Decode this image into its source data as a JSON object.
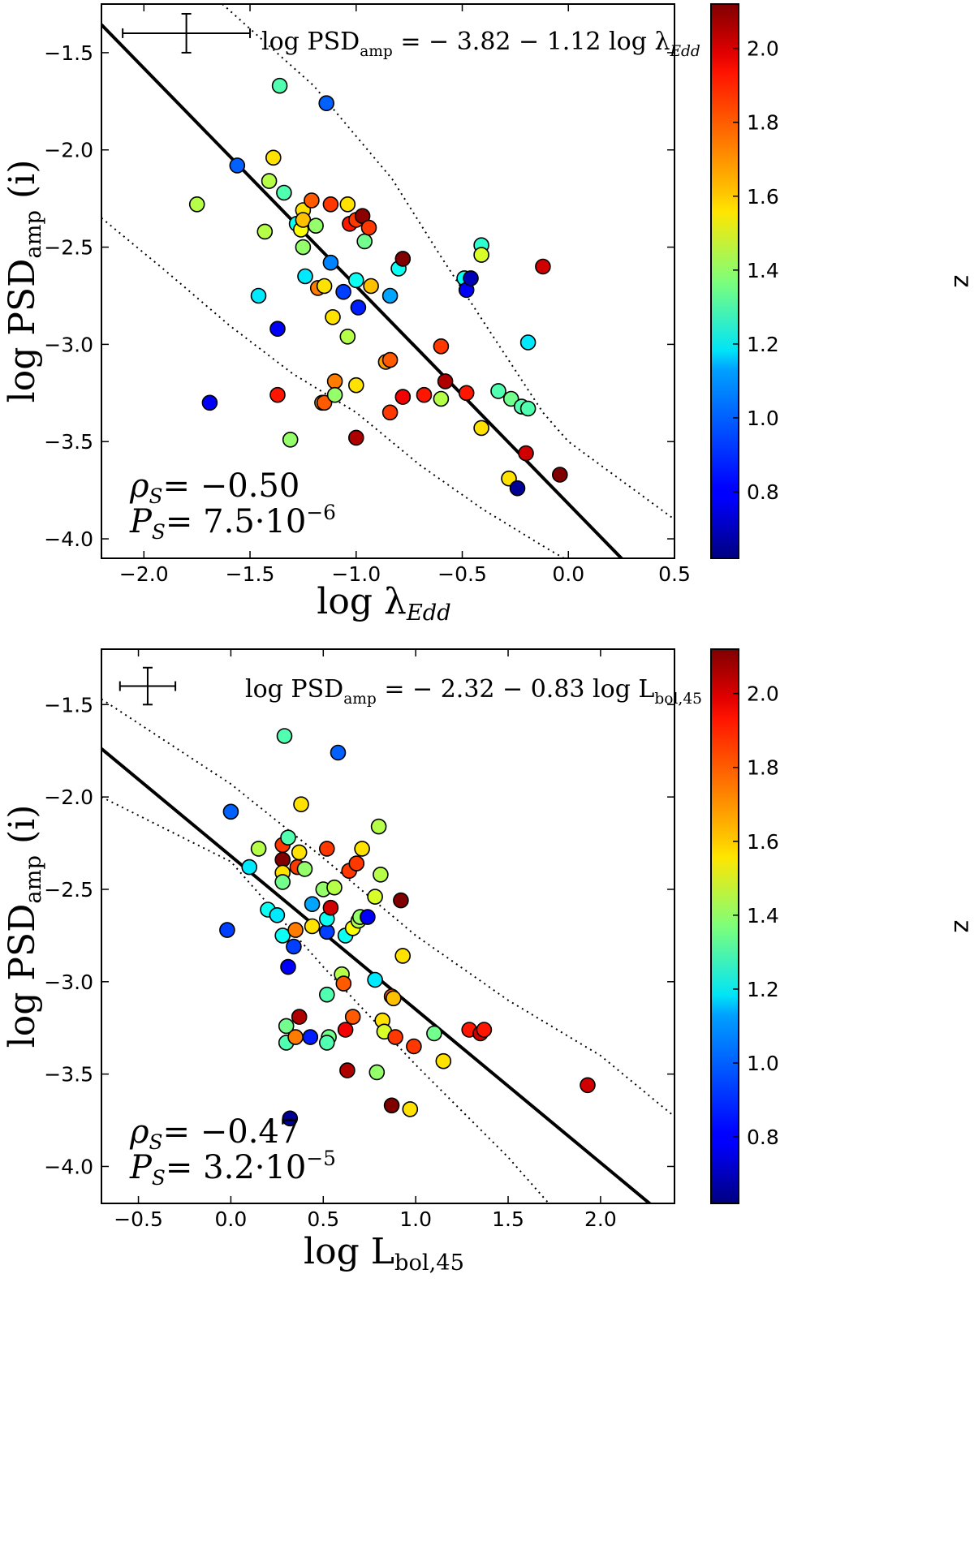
{
  "chart_data": [
    {
      "type": "scatter",
      "name": "top",
      "xlabel": {
        "base": "log ",
        "sym": "λ",
        "sub": "Edd"
      },
      "ylabel": {
        "base": "log PSD",
        "sub": "amp",
        "suffix": " (i)"
      },
      "xlim": [
        -2.2,
        0.5
      ],
      "ylim": [
        -4.1,
        -1.25
      ],
      "xticks": [
        -2.0,
        -1.5,
        -1.0,
        -0.5,
        0.0,
        0.5
      ],
      "xtick_labels": [
        "−2.0",
        "−1.5",
        "−1.0",
        "−0.5",
        "0.0",
        "0.5"
      ],
      "yticks": [
        -1.5,
        -2.0,
        -2.5,
        -3.0,
        -3.5,
        -4.0
      ],
      "ytick_labels": [
        "−1.5",
        "−2.0",
        "−2.5",
        "−3.0",
        "−3.5",
        "−4.0"
      ],
      "equation": {
        "pre": "log PSD",
        "pre_sub": "amp",
        "mid": " = − 3.82 − 1.12 log ",
        "sym": "λ",
        "sym_sub": "Edd"
      },
      "rho": {
        "label": "ρ",
        "sub": "S",
        "value": "= −0.50"
      },
      "pval": {
        "label": "P",
        "sub": "S",
        "value": "= 7.5·10",
        "exp": "−6"
      },
      "fit_line": {
        "slope": -1.12,
        "intercept": -3.82
      },
      "dotted_upper": [
        [
          -1.63,
          -1.25
        ],
        [
          -1.2,
          -1.67
        ],
        [
          -0.83,
          -2.15
        ],
        [
          -0.6,
          -2.55
        ],
        [
          -0.3,
          -3.05
        ],
        [
          -0.12,
          -3.35
        ],
        [
          0.0,
          -3.5
        ],
        [
          0.5,
          -3.9
        ]
      ],
      "dotted_lower": [
        [
          -2.2,
          -2.35
        ],
        [
          -1.9,
          -2.62
        ],
        [
          -1.6,
          -2.9
        ],
        [
          -1.3,
          -3.15
        ],
        [
          -1.0,
          -3.35
        ],
        [
          -0.7,
          -3.62
        ],
        [
          -0.4,
          -3.85
        ],
        [
          -0.1,
          -4.05
        ],
        [
          -0.02,
          -4.1
        ]
      ],
      "error_bar": {
        "x": -1.8,
        "y": -1.4,
        "xerr": 0.3,
        "yerr": 0.1
      },
      "points": [
        {
          "x": -1.75,
          "y": -2.28,
          "z": 1.45
        },
        {
          "x": -1.69,
          "y": -3.3,
          "z": 0.8
        },
        {
          "x": -1.56,
          "y": -2.08,
          "z": 0.95
        },
        {
          "x": -1.46,
          "y": -2.75,
          "z": 1.15
        },
        {
          "x": -1.43,
          "y": -2.42,
          "z": 1.45
        },
        {
          "x": -1.41,
          "y": -2.16,
          "z": 1.45
        },
        {
          "x": -1.39,
          "y": -2.04,
          "z": 1.6
        },
        {
          "x": -1.37,
          "y": -2.92,
          "z": 0.8
        },
        {
          "x": -1.37,
          "y": -3.26,
          "z": 1.9
        },
        {
          "x": -1.36,
          "y": -1.67,
          "z": 1.3
        },
        {
          "x": -1.34,
          "y": -2.22,
          "z": 1.3
        },
        {
          "x": -1.31,
          "y": -3.49,
          "z": 1.4
        },
        {
          "x": -1.28,
          "y": -2.38,
          "z": 1.2
        },
        {
          "x": -1.26,
          "y": -2.41,
          "z": 1.55
        },
        {
          "x": -1.25,
          "y": -2.31,
          "z": 1.6
        },
        {
          "x": -1.25,
          "y": -2.36,
          "z": 1.65
        },
        {
          "x": -1.25,
          "y": -2.5,
          "z": 1.4
        },
        {
          "x": -1.24,
          "y": -2.65,
          "z": 1.15
        },
        {
          "x": -1.21,
          "y": -2.26,
          "z": 1.8
        },
        {
          "x": -1.19,
          "y": -2.39,
          "z": 1.4
        },
        {
          "x": -1.18,
          "y": -2.71,
          "z": 1.75
        },
        {
          "x": -1.16,
          "y": -3.3,
          "z": 1.7
        },
        {
          "x": -1.15,
          "y": -3.3,
          "z": 1.8
        },
        {
          "x": -1.15,
          "y": -2.7,
          "z": 1.6
        },
        {
          "x": -1.12,
          "y": -2.28,
          "z": 1.85
        },
        {
          "x": -1.12,
          "y": -2.58,
          "z": 1.0
        },
        {
          "x": -1.11,
          "y": -2.86,
          "z": 1.6
        },
        {
          "x": -1.1,
          "y": -3.19,
          "z": 1.75
        },
        {
          "x": -1.1,
          "y": -3.26,
          "z": 1.4
        },
        {
          "x": -1.06,
          "y": -2.73,
          "z": 0.9
        },
        {
          "x": -1.04,
          "y": -2.28,
          "z": 1.6
        },
        {
          "x": -1.04,
          "y": -2.96,
          "z": 1.45
        },
        {
          "x": -1.03,
          "y": -2.38,
          "z": 1.9
        },
        {
          "x": -1.0,
          "y": -2.36,
          "z": 1.85
        },
        {
          "x": -1.0,
          "y": -2.67,
          "z": 1.2
        },
        {
          "x": -1.0,
          "y": -3.48,
          "z": 2.05
        },
        {
          "x": -1.0,
          "y": -3.21,
          "z": 1.6
        },
        {
          "x": -0.99,
          "y": -2.81,
          "z": 0.85
        },
        {
          "x": -0.97,
          "y": -2.34,
          "z": 2.1
        },
        {
          "x": -0.96,
          "y": -2.47,
          "z": 1.35
        },
        {
          "x": -0.94,
          "y": -2.4,
          "z": 1.85
        },
        {
          "x": -0.93,
          "y": -2.7,
          "z": 1.65
        },
        {
          "x": -0.86,
          "y": -3.09,
          "z": 1.7
        },
        {
          "x": -0.84,
          "y": -2.75,
          "z": 1.05
        },
        {
          "x": -0.84,
          "y": -3.35,
          "z": 1.85
        },
        {
          "x": -0.84,
          "y": -3.08,
          "z": 1.8
        },
        {
          "x": -0.8,
          "y": -2.61,
          "z": 1.2
        },
        {
          "x": -0.78,
          "y": -3.27,
          "z": 1.95
        },
        {
          "x": -0.78,
          "y": -2.56,
          "z": 2.12
        },
        {
          "x": -1.14,
          "y": -1.76,
          "z": 0.95
        },
        {
          "x": -0.68,
          "y": -3.26,
          "z": 1.9
        },
        {
          "x": -0.6,
          "y": -3.28,
          "z": 1.45
        },
        {
          "x": -0.6,
          "y": -3.01,
          "z": 1.85
        },
        {
          "x": -0.58,
          "y": -3.19,
          "z": 2.05
        },
        {
          "x": -0.49,
          "y": -2.66,
          "z": 1.2
        },
        {
          "x": -0.48,
          "y": -2.72,
          "z": 0.8
        },
        {
          "x": -0.48,
          "y": -3.25,
          "z": 1.9
        },
        {
          "x": -0.46,
          "y": -2.66,
          "z": 0.7
        },
        {
          "x": -0.41,
          "y": -2.49,
          "z": 1.25
        },
        {
          "x": -0.41,
          "y": -2.54,
          "z": 1.5
        },
        {
          "x": -0.41,
          "y": -3.43,
          "z": 1.6
        },
        {
          "x": -0.33,
          "y": -3.24,
          "z": 1.3
        },
        {
          "x": -0.28,
          "y": -3.69,
          "z": 1.6
        },
        {
          "x": -0.27,
          "y": -3.28,
          "z": 1.35
        },
        {
          "x": -0.24,
          "y": -3.74,
          "z": 0.65
        },
        {
          "x": -0.22,
          "y": -3.32,
          "z": 1.3
        },
        {
          "x": -0.19,
          "y": -3.33,
          "z": 1.3
        },
        {
          "x": -0.2,
          "y": -3.56,
          "z": 2.0
        },
        {
          "x": -0.19,
          "y": -2.99,
          "z": 1.15
        },
        {
          "x": -0.12,
          "y": -2.6,
          "z": 2.0
        },
        {
          "x": -0.04,
          "y": -3.67,
          "z": 2.12
        }
      ]
    },
    {
      "type": "scatter",
      "name": "bottom",
      "xlabel": {
        "base": "log L",
        "sub": "bol,45"
      },
      "ylabel": {
        "base": "log PSD",
        "sub": "amp",
        "suffix": " (i)"
      },
      "xlim": [
        -0.7,
        2.4
      ],
      "ylim": [
        -4.2,
        -1.2
      ],
      "xticks": [
        -0.5,
        0.0,
        0.5,
        1.0,
        1.5,
        2.0
      ],
      "xtick_labels": [
        "−0.5",
        "0.0",
        "0.5",
        "1.0",
        "1.5",
        "2.0"
      ],
      "yticks": [
        -1.5,
        -2.0,
        -2.5,
        -3.0,
        -3.5,
        -4.0
      ],
      "ytick_labels": [
        "−1.5",
        "−2.0",
        "−2.5",
        "−3.0",
        "−3.5",
        "−4.0"
      ],
      "equation": {
        "pre": "log PSD",
        "pre_sub": "amp",
        "mid": " = − 2.32 − 0.83 log L",
        "sym": "",
        "sym_sub": "bol,45"
      },
      "rho": {
        "label": "ρ",
        "sub": "S",
        "value": "= −0.47"
      },
      "pval": {
        "label": "P",
        "sub": "S",
        "value": "= 3.2·10",
        "exp": "−5"
      },
      "fit_line": {
        "slope": -0.83,
        "intercept": -2.32
      },
      "dotted_upper": [
        [
          -0.7,
          -1.47
        ],
        [
          0.0,
          -1.93
        ],
        [
          0.5,
          -2.33
        ],
        [
          1.0,
          -2.75
        ],
        [
          1.5,
          -3.1
        ],
        [
          2.0,
          -3.4
        ],
        [
          2.4,
          -3.73
        ]
      ],
      "dotted_lower": [
        [
          -0.7,
          -2.0
        ],
        [
          0.0,
          -2.35
        ],
        [
          0.5,
          -2.92
        ],
        [
          1.0,
          -3.45
        ],
        [
          1.5,
          -3.95
        ],
        [
          1.72,
          -4.2
        ]
      ],
      "error_bar": {
        "x": -0.45,
        "y": -1.4,
        "xerr": 0.15,
        "yerr": 0.1
      },
      "points": [
        {
          "x": 0.0,
          "y": -2.08,
          "z": 0.95
        },
        {
          "x": -0.02,
          "y": -2.72,
          "z": 0.9
        },
        {
          "x": 0.1,
          "y": -2.38,
          "z": 1.15
        },
        {
          "x": 0.15,
          "y": -2.28,
          "z": 1.45
        },
        {
          "x": 0.2,
          "y": -2.61,
          "z": 1.2
        },
        {
          "x": 0.25,
          "y": -2.64,
          "z": 1.15
        },
        {
          "x": 0.28,
          "y": -2.34,
          "z": 2.12
        },
        {
          "x": 0.28,
          "y": -2.26,
          "z": 1.85
        },
        {
          "x": 0.28,
          "y": -2.41,
          "z": 1.6
        },
        {
          "x": 0.28,
          "y": -2.46,
          "z": 1.35
        },
        {
          "x": 0.28,
          "y": -2.75,
          "z": 1.2
        },
        {
          "x": 0.29,
          "y": -1.67,
          "z": 1.3
        },
        {
          "x": 0.3,
          "y": -3.24,
          "z": 1.35
        },
        {
          "x": 0.31,
          "y": -2.22,
          "z": 1.3
        },
        {
          "x": 0.31,
          "y": -2.92,
          "z": 0.8
        },
        {
          "x": 0.3,
          "y": -3.33,
          "z": 1.3
        },
        {
          "x": 0.34,
          "y": -2.81,
          "z": 0.9
        },
        {
          "x": 0.35,
          "y": -2.72,
          "z": 1.75
        },
        {
          "x": 0.35,
          "y": -3.3,
          "z": 1.75
        },
        {
          "x": 0.36,
          "y": -2.38,
          "z": 1.85
        },
        {
          "x": 0.37,
          "y": -2.3,
          "z": 1.6
        },
        {
          "x": 0.37,
          "y": -3.19,
          "z": 2.05
        },
        {
          "x": 0.38,
          "y": -2.04,
          "z": 1.6
        },
        {
          "x": 0.4,
          "y": -2.39,
          "z": 1.4
        },
        {
          "x": 0.44,
          "y": -2.58,
          "z": 1.05
        },
        {
          "x": 0.44,
          "y": -2.7,
          "z": 1.6
        },
        {
          "x": 0.43,
          "y": -3.3,
          "z": 0.85
        },
        {
          "x": 0.5,
          "y": -2.5,
          "z": 1.4
        },
        {
          "x": 0.52,
          "y": -2.28,
          "z": 1.85
        },
        {
          "x": 0.52,
          "y": -2.73,
          "z": 0.9
        },
        {
          "x": 0.52,
          "y": -2.66,
          "z": 1.2
        },
        {
          "x": 0.52,
          "y": -3.07,
          "z": 1.3
        },
        {
          "x": 0.53,
          "y": -3.3,
          "z": 1.35
        },
        {
          "x": 0.52,
          "y": -3.33,
          "z": 1.3
        },
        {
          "x": 0.54,
          "y": -2.6,
          "z": 2.0
        },
        {
          "x": 0.56,
          "y": -2.49,
          "z": 1.45
        },
        {
          "x": 0.58,
          "y": -1.76,
          "z": 0.95
        },
        {
          "x": 0.6,
          "y": -2.96,
          "z": 1.45
        },
        {
          "x": 0.61,
          "y": -3.01,
          "z": 1.8
        },
        {
          "x": 0.62,
          "y": -3.26,
          "z": 1.95
        },
        {
          "x": 0.62,
          "y": -2.75,
          "z": 1.2
        },
        {
          "x": 0.63,
          "y": -3.48,
          "z": 2.05
        },
        {
          "x": 0.64,
          "y": -2.4,
          "z": 1.85
        },
        {
          "x": 0.66,
          "y": -2.71,
          "z": 1.55
        },
        {
          "x": 0.66,
          "y": -3.19,
          "z": 1.8
        },
        {
          "x": 0.68,
          "y": -2.36,
          "z": 1.85
        },
        {
          "x": 0.69,
          "y": -2.67,
          "z": 1.45
        },
        {
          "x": 0.7,
          "y": -2.65,
          "z": 1.4
        },
        {
          "x": 0.71,
          "y": -2.28,
          "z": 1.6
        },
        {
          "x": 0.74,
          "y": -2.65,
          "z": 0.8
        },
        {
          "x": 0.78,
          "y": -2.99,
          "z": 1.15
        },
        {
          "x": 0.78,
          "y": -2.54,
          "z": 1.5
        },
        {
          "x": 0.79,
          "y": -3.49,
          "z": 1.4
        },
        {
          "x": 0.8,
          "y": -2.16,
          "z": 1.45
        },
        {
          "x": 0.81,
          "y": -2.42,
          "z": 1.45
        },
        {
          "x": 0.82,
          "y": -3.21,
          "z": 1.6
        },
        {
          "x": 0.83,
          "y": -3.27,
          "z": 1.5
        },
        {
          "x": 0.87,
          "y": -3.08,
          "z": 1.8
        },
        {
          "x": 0.88,
          "y": -3.09,
          "z": 1.65
        },
        {
          "x": 0.87,
          "y": -3.67,
          "z": 2.12
        },
        {
          "x": 0.89,
          "y": -3.3,
          "z": 1.85
        },
        {
          "x": 0.92,
          "y": -2.56,
          "z": 2.12
        },
        {
          "x": 0.93,
          "y": -2.86,
          "z": 1.6
        },
        {
          "x": 0.97,
          "y": -3.69,
          "z": 1.6
        },
        {
          "x": 0.99,
          "y": -3.35,
          "z": 1.85
        },
        {
          "x": 1.1,
          "y": -3.28,
          "z": 1.35
        },
        {
          "x": 1.15,
          "y": -3.43,
          "z": 1.6
        },
        {
          "x": 1.29,
          "y": -3.26,
          "z": 1.9
        },
        {
          "x": 1.35,
          "y": -3.28,
          "z": 2.0
        },
        {
          "x": 1.37,
          "y": -3.26,
          "z": 1.9
        },
        {
          "x": 0.32,
          "y": -3.74,
          "z": 0.65
        },
        {
          "x": 1.93,
          "y": -3.56,
          "z": 2.0
        }
      ]
    }
  ],
  "colorbar": {
    "label": "z",
    "min": 0.62,
    "max": 2.12,
    "ticks": [
      0.8,
      1.0,
      1.2,
      1.4,
      1.6,
      1.8,
      2.0
    ],
    "tick_labels": [
      "0.8",
      "1.0",
      "1.2",
      "1.4",
      "1.6",
      "1.8",
      "2.0"
    ],
    "colormap": "jet"
  }
}
